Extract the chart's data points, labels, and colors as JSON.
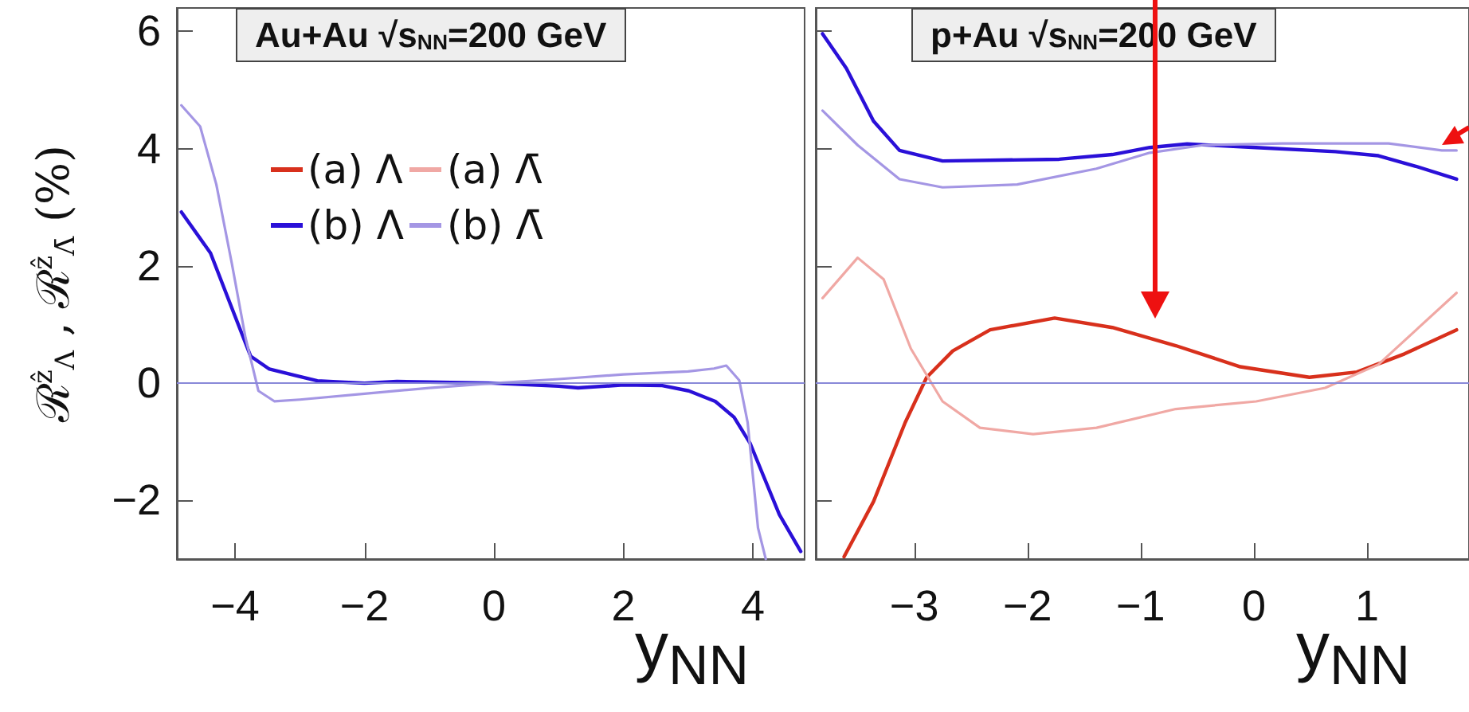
{
  "chart_data": [
    {
      "type": "line",
      "title": "Au+Au √s$_{NN}$=200 GeV",
      "xlabel": "y$_{NN}$",
      "ylabel": "ℛ$^{ẑ}$$_{Λ}$ , ℛ$^{ẑ}$$_{Λ̄}$ (%)",
      "xlim": [
        -4.9,
        4.8
      ],
      "xticks": [
        -4,
        -2,
        0,
        2,
        4
      ],
      "ylim": [
        -3,
        6.4
      ],
      "yticks": [
        -2,
        0,
        2,
        4,
        6
      ],
      "grid": false,
      "marker": "none",
      "ref_lines": [
        {
          "axis": "y",
          "value": 0,
          "color": "#8888d8"
        }
      ],
      "series": [
        {
          "color": "#2a10d8",
          "x": [
            -4.83,
            -4.38,
            -4.0,
            -3.76,
            -3.47,
            -3.06,
            -2.73,
            -2,
            -1.5,
            -1,
            0,
            1,
            1.3,
            2,
            2.6,
            3.01,
            3.42,
            3.71,
            3.96,
            4.16,
            4.41,
            4.74
          ],
          "values": [
            2.92,
            2.22,
            1.14,
            0.46,
            0.24,
            0.13,
            0.04,
            0.0,
            0.03,
            0.02,
            0,
            -0.05,
            -0.08,
            -0.03,
            -0.04,
            -0.13,
            -0.31,
            -0.58,
            -1.03,
            -1.57,
            -2.24,
            -2.87
          ]
        },
        {
          "color": "#a496e4",
          "x": [
            -4.83,
            -4.54,
            -4.29,
            -4.05,
            -3.84,
            -3.64,
            -3.39,
            -3.0,
            -2,
            -1,
            0,
            1,
            2,
            3,
            3.4,
            3.59,
            3.79,
            3.92,
            4.0,
            4.08,
            4.2
          ],
          "values": [
            4.74,
            4.38,
            3.39,
            2.04,
            0.78,
            -0.13,
            -0.31,
            -0.28,
            -0.18,
            -0.08,
            0,
            0.07,
            0.15,
            0.2,
            0.25,
            0.3,
            0.05,
            -0.67,
            -1.57,
            -2.47,
            -3.0
          ]
        }
      ]
    },
    {
      "type": "line",
      "title": "p+Au √s$_{NN}$=200 GeV",
      "xlabel": "y$_{NN}$",
      "xlim": [
        -3.87,
        1.9
      ],
      "xticks": [
        -3,
        -2,
        -1,
        0,
        1
      ],
      "ylim": [
        -3,
        6.4
      ],
      "yticks": [
        -2,
        0,
        2,
        4,
        6
      ],
      "tick_labels": "x",
      "legend": "left",
      "grid": false,
      "marker": "none",
      "ref_lines": [
        {
          "axis": "y",
          "value": 0,
          "color": "#8888d8"
        }
      ],
      "series": [
        {
          "name": "(a) Λ",
          "color": "#d8301c",
          "x": [
            -3.62,
            -3.36,
            -3.08,
            -2.89,
            -2.66,
            -2.33,
            -1.76,
            -1.25,
            -0.69,
            -0.12,
            0.49,
            0.91,
            1.33,
            1.79
          ],
          "values": [
            -2.96,
            -2.02,
            -0.67,
            0.1,
            0.55,
            0.91,
            1.11,
            0.95,
            0.64,
            0.28,
            0.1,
            0.19,
            0.5,
            0.91
          ]
        },
        {
          "name": "(a) Λ̄",
          "color": "#f0a8a4",
          "x": [
            -3.81,
            -3.5,
            -3.27,
            -3.03,
            -2.75,
            -2.42,
            -1.95,
            -1.39,
            -0.69,
            0.02,
            0.63,
            1.1,
            1.79
          ],
          "values": [
            1.45,
            2.14,
            1.77,
            0.59,
            -0.31,
            -0.76,
            -0.87,
            -0.76,
            -0.44,
            -0.31,
            -0.08,
            0.32,
            1.54
          ]
        },
        {
          "name": "(b) Λ",
          "color": "#2a10d8",
          "x": [
            -3.81,
            -3.6,
            -3.36,
            -3.13,
            -2.75,
            -1.72,
            -1.25,
            -0.92,
            -0.59,
            0.02,
            0.72,
            1.1,
            1.43,
            1.79
          ],
          "values": [
            5.96,
            5.37,
            4.47,
            3.97,
            3.79,
            3.82,
            3.9,
            4.02,
            4.08,
            4.02,
            3.95,
            3.88,
            3.7,
            3.48
          ]
        },
        {
          "name": "(b) Λ̄",
          "color": "#a496e4",
          "x": [
            -3.81,
            -3.5,
            -3.13,
            -2.75,
            -2.09,
            -1.39,
            -0.92,
            -0.45,
            0.25,
            1.19,
            1.66,
            1.79
          ],
          "values": [
            4.65,
            4.06,
            3.48,
            3.34,
            3.39,
            3.66,
            3.93,
            4.06,
            4.09,
            4.09,
            3.97,
            3.97
          ]
        }
      ]
    }
  ]
}
